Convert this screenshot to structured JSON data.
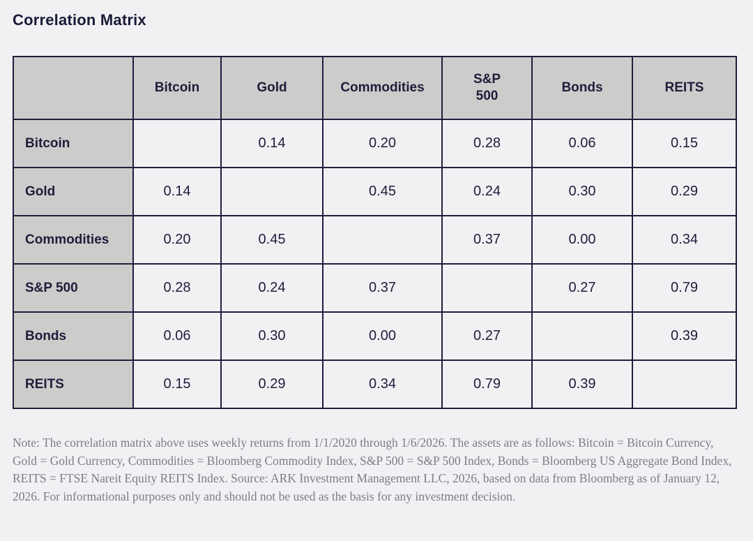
{
  "page": {
    "title": "Correlation Matrix",
    "colors": {
      "page_background": "#f1f1f4",
      "header_cell_background": "#cccccb",
      "table_border": "#1e1e3c",
      "title_text": "#1a1a38",
      "cell_text": "#1d1d3b",
      "note_text": "#7c7c88"
    }
  },
  "chart_data": {
    "type": "table",
    "title": "Correlation Matrix",
    "columns": [
      "",
      "Bitcoin",
      "Gold",
      "Commodities",
      "S&P 500",
      "Bonds",
      "REITS"
    ],
    "rows": [
      {
        "label": "Bitcoin",
        "values": [
          "",
          "0.14",
          "0.20",
          "0.28",
          "0.06",
          "0.15"
        ]
      },
      {
        "label": "Gold",
        "values": [
          "0.14",
          "",
          "0.45",
          "0.24",
          "0.30",
          "0.29"
        ]
      },
      {
        "label": "Commodities",
        "values": [
          "0.20",
          "0.45",
          "",
          "0.37",
          "0.00",
          "0.34"
        ]
      },
      {
        "label": "S&P 500",
        "values": [
          "0.28",
          "0.24",
          "0.37",
          "",
          "0.27",
          "0.79"
        ]
      },
      {
        "label": "Bonds",
        "values": [
          "0.06",
          "0.30",
          "0.00",
          "0.27",
          "",
          "0.39"
        ]
      },
      {
        "label": "REITS",
        "values": [
          "0.15",
          "0.29",
          "0.34",
          "0.79",
          "0.39",
          ""
        ]
      }
    ]
  },
  "note": "Note: The correlation matrix above uses weekly returns from 1/1/2020 through 1/6/2026. The assets are as follows: Bitcoin = Bitcoin Currency, Gold = Gold Currency, Commodities = Bloomberg Commodity Index, S&P 500 = S&P 500 Index, Bonds = Bloomberg US Aggregate Bond Index, REITS = FTSE Nareit Equity REITS Index. Source: ARK Investment Management LLC, 2026, based on data from Bloomberg as of January 12, 2026. For informational purposes only and should not be used as the basis for any investment decision."
}
